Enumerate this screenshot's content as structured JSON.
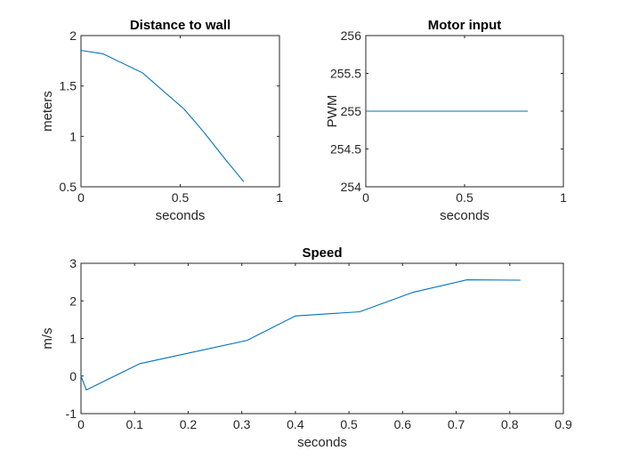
{
  "colors": {
    "series": "#0072bd",
    "axes": "#262626"
  },
  "chart_data": [
    {
      "type": "line",
      "title": "Distance to wall",
      "xlabel": "seconds",
      "ylabel": "meters",
      "xlim": [
        0,
        1
      ],
      "ylim": [
        0.5,
        2
      ],
      "xticks": [
        0,
        0.5,
        1
      ],
      "xtick_labels": [
        "0",
        "0.5",
        "1"
      ],
      "yticks": [
        0.5,
        1,
        1.5,
        2
      ],
      "ytick_labels": [
        "0.5",
        "1",
        "1.5",
        "2"
      ],
      "grid": false,
      "series": [
        {
          "x": [
            0,
            0.01,
            0.11,
            0.31,
            0.52,
            0.62,
            0.72,
            0.82
          ],
          "y": [
            1.85,
            1.85,
            1.82,
            1.63,
            1.27,
            1.04,
            0.79,
            0.55
          ]
        }
      ]
    },
    {
      "type": "line",
      "title": "Motor input",
      "xlabel": "seconds",
      "ylabel": "PWM",
      "xlim": [
        0,
        1
      ],
      "ylim": [
        254,
        256
      ],
      "xticks": [
        0,
        0.5,
        1
      ],
      "xtick_labels": [
        "0",
        "0.5",
        "1"
      ],
      "yticks": [
        254,
        254.5,
        255,
        255.5,
        256
      ],
      "ytick_labels": [
        "254",
        "254.5",
        "255",
        "255.5",
        "256"
      ],
      "grid": false,
      "series": [
        {
          "x": [
            0,
            0.82
          ],
          "y": [
            255,
            255
          ]
        }
      ]
    },
    {
      "type": "line",
      "title": "Speed",
      "xlabel": "seconds",
      "ylabel": "m/s",
      "xlim": [
        0,
        0.9
      ],
      "ylim": [
        -1,
        3
      ],
      "xticks": [
        0,
        0.1,
        0.2,
        0.3,
        0.4,
        0.5,
        0.6,
        0.7,
        0.8,
        0.9
      ],
      "xtick_labels": [
        "0",
        "0.1",
        "0.2",
        "0.3",
        "0.4",
        "0.5",
        "0.6",
        "0.7",
        "0.8",
        "0.9"
      ],
      "yticks": [
        -1,
        0,
        1,
        2,
        3
      ],
      "ytick_labels": [
        "-1",
        "0",
        "1",
        "2",
        "3"
      ],
      "grid": false,
      "series": [
        {
          "x": [
            0,
            0.01,
            0.11,
            0.31,
            0.4,
            0.52,
            0.62,
            0.72,
            0.82
          ],
          "y": [
            0,
            -0.37,
            0.33,
            0.95,
            1.6,
            1.71,
            2.23,
            2.56,
            2.55
          ]
        }
      ]
    }
  ]
}
